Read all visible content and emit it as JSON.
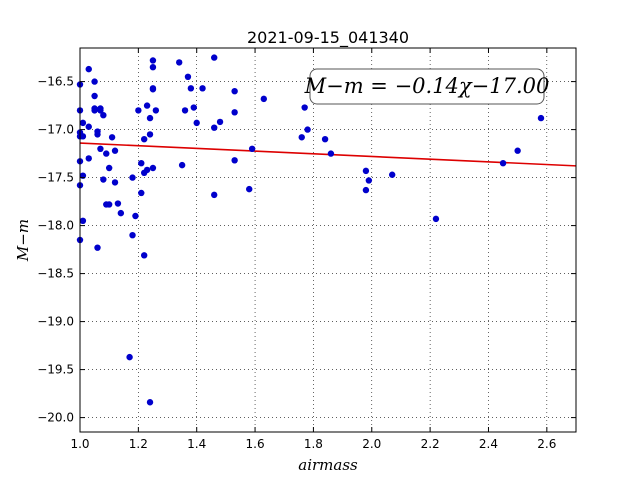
{
  "chart_data": {
    "type": "scatter",
    "title": "2021-09-15_041340",
    "xlabel": "airmass",
    "ylabel": "M−m",
    "xlim": [
      1.0,
      2.7
    ],
    "ylim": [
      -20.15,
      -16.15
    ],
    "y_inverted": true,
    "x_ticks": [
      "1.0",
      "1.2",
      "1.4",
      "1.6",
      "1.8",
      "2.0",
      "2.2",
      "2.4",
      "2.6"
    ],
    "x_tick_values": [
      1.0,
      1.2,
      1.4,
      1.6,
      1.8,
      2.0,
      2.2,
      2.4,
      2.6
    ],
    "y_ticks": [
      "−16.5",
      "−17.0",
      "−17.5",
      "−18.0",
      "−18.5",
      "−19.0",
      "−19.5",
      "−20.0"
    ],
    "y_tick_values": [
      -16.5,
      -17.0,
      -17.5,
      -18.0,
      -18.5,
      -19.0,
      -19.5,
      -20.0
    ],
    "grid": true,
    "point_color": "#0000cc",
    "fit_color": "#dd0000",
    "fit": {
      "slope": -0.14,
      "intercept": -17.0
    },
    "annotation": "M−m = −0.14χ−17.00",
    "points": [
      [
        1.0,
        -16.53
      ],
      [
        1.0,
        -16.8
      ],
      [
        1.0,
        -17.03
      ],
      [
        1.0,
        -17.07
      ],
      [
        1.0,
        -17.33
      ],
      [
        1.0,
        -17.58
      ],
      [
        1.0,
        -18.15
      ],
      [
        1.01,
        -16.93
      ],
      [
        1.01,
        -17.07
      ],
      [
        1.01,
        -17.48
      ],
      [
        1.01,
        -17.95
      ],
      [
        1.03,
        -16.37
      ],
      [
        1.03,
        -16.97
      ],
      [
        1.03,
        -17.3
      ],
      [
        1.05,
        -16.5
      ],
      [
        1.05,
        -16.65
      ],
      [
        1.05,
        -16.78
      ],
      [
        1.05,
        -16.8
      ],
      [
        1.06,
        -17.02
      ],
      [
        1.06,
        -17.05
      ],
      [
        1.06,
        -18.23
      ],
      [
        1.07,
        -16.78
      ],
      [
        1.07,
        -16.8
      ],
      [
        1.07,
        -17.2
      ],
      [
        1.08,
        -16.85
      ],
      [
        1.08,
        -17.52
      ],
      [
        1.09,
        -17.25
      ],
      [
        1.09,
        -17.78
      ],
      [
        1.1,
        -17.4
      ],
      [
        1.1,
        -17.78
      ],
      [
        1.11,
        -17.08
      ],
      [
        1.12,
        -17.55
      ],
      [
        1.12,
        -17.22
      ],
      [
        1.13,
        -17.77
      ],
      [
        1.14,
        -17.87
      ],
      [
        1.17,
        -19.37
      ],
      [
        1.18,
        -17.5
      ],
      [
        1.18,
        -18.1
      ],
      [
        1.19,
        -17.9
      ],
      [
        1.2,
        -16.8
      ],
      [
        1.21,
        -17.35
      ],
      [
        1.21,
        -17.66
      ],
      [
        1.22,
        -17.1
      ],
      [
        1.22,
        -18.31
      ],
      [
        1.22,
        -17.45
      ],
      [
        1.23,
        -16.75
      ],
      [
        1.23,
        -17.42
      ],
      [
        1.24,
        -16.88
      ],
      [
        1.24,
        -17.05
      ],
      [
        1.25,
        -16.28
      ],
      [
        1.25,
        -16.35
      ],
      [
        1.25,
        -16.57
      ],
      [
        1.25,
        -16.58
      ],
      [
        1.25,
        -17.4
      ],
      [
        1.24,
        -19.84
      ],
      [
        1.26,
        -16.8
      ],
      [
        1.34,
        -16.3
      ],
      [
        1.35,
        -17.37
      ],
      [
        1.36,
        -16.8
      ],
      [
        1.37,
        -16.45
      ],
      [
        1.38,
        -16.57
      ],
      [
        1.39,
        -16.77
      ],
      [
        1.4,
        -16.93
      ],
      [
        1.42,
        -16.57
      ],
      [
        1.46,
        -16.25
      ],
      [
        1.46,
        -16.98
      ],
      [
        1.46,
        -17.68
      ],
      [
        1.48,
        -16.92
      ],
      [
        1.53,
        -16.6
      ],
      [
        1.53,
        -16.82
      ],
      [
        1.53,
        -17.32
      ],
      [
        1.58,
        -17.62
      ],
      [
        1.59,
        -17.2
      ],
      [
        1.63,
        -16.68
      ],
      [
        1.76,
        -17.08
      ],
      [
        1.77,
        -16.77
      ],
      [
        1.78,
        -17.0
      ],
      [
        1.84,
        -17.1
      ],
      [
        1.86,
        -17.25
      ],
      [
        1.98,
        -17.43
      ],
      [
        1.98,
        -17.63
      ],
      [
        1.99,
        -17.53
      ],
      [
        2.07,
        -17.47
      ],
      [
        2.22,
        -17.93
      ],
      [
        2.45,
        -17.35
      ],
      [
        2.5,
        -17.22
      ],
      [
        2.58,
        -16.88
      ]
    ]
  }
}
